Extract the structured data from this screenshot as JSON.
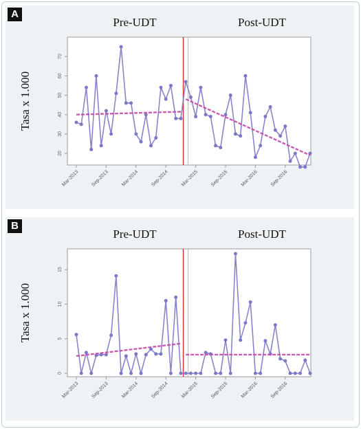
{
  "chart_data": [
    {
      "type": "line",
      "panel": "A",
      "ylabel": "Tasa x 1.000",
      "phase_labels": [
        "Pre-UDT",
        "Post-UDT"
      ],
      "x_ticks": [
        "Mar-2013",
        "Sep-2013",
        "Mar-2014",
        "Sep-2014",
        "Mar-2015",
        "Sep-2015",
        "Mar-2016",
        "Sep-2016"
      ],
      "y_ticks": [
        20,
        30,
        40,
        50,
        60,
        70
      ],
      "ylim": [
        14,
        80
      ],
      "grid": false,
      "series": [
        {
          "values": [
            36,
            35,
            54,
            22,
            60,
            24,
            42,
            30,
            51,
            75,
            46,
            46,
            30,
            26,
            40,
            24,
            28,
            54,
            48,
            55,
            38,
            38,
            57,
            49,
            39,
            54,
            40,
            39,
            24,
            23,
            40,
            50,
            30,
            29,
            60,
            41,
            18,
            24,
            39,
            44,
            32,
            29,
            34,
            16,
            20,
            13,
            13,
            20
          ],
          "color": "#7b78c8"
        }
      ],
      "trend_pre": [
        [
          0,
          40
        ],
        [
          21,
          41.5
        ]
      ],
      "trend_post": [
        [
          22,
          48
        ],
        [
          47,
          19
        ]
      ],
      "intervention_index": 21.5,
      "intervention_color": "#d22f2f",
      "trend_color": "#c74aa8"
    },
    {
      "type": "line",
      "panel": "B",
      "ylabel": "Tasa x 1.000",
      "phase_labels": [
        "Pre-UDT",
        "Post-UDT"
      ],
      "x_ticks": [
        "Mar-2013",
        "Sep-2013",
        "Mar-2014",
        "Sep-2014",
        "Mar-2015",
        "Sep-2015",
        "Mar-2016",
        "Sep-2016"
      ],
      "y_ticks": [
        0,
        5,
        10,
        15
      ],
      "ylim": [
        -0.5,
        18
      ],
      "grid": false,
      "series": [
        {
          "values": [
            5.6,
            0,
            3,
            0,
            2.6,
            2.7,
            2.7,
            5.5,
            14.1,
            0,
            2.5,
            0,
            2.8,
            0,
            2.7,
            3.5,
            2.8,
            2.8,
            10.5,
            0,
            11,
            0,
            0,
            0,
            0,
            0,
            3,
            2.8,
            0,
            0,
            4.8,
            0,
            17.3,
            4.8,
            7.3,
            10.3,
            0,
            0,
            4.7,
            2.8,
            7,
            2.1,
            1.8,
            0,
            0,
            0,
            1.9,
            0
          ],
          "color": "#7b78c8"
        }
      ],
      "trend_pre": [
        [
          0,
          2.5
        ],
        [
          21,
          4.3
        ]
      ],
      "trend_post": [
        [
          22,
          2.7
        ],
        [
          47,
          2.7
        ]
      ],
      "intervention_index": 21.5,
      "intervention_color": "#d22f2f",
      "trend_color": "#c74aa8"
    }
  ],
  "colors": {
    "series": "#7b78c8",
    "trend": "#c74aa8",
    "intervention": "#d22f2f",
    "panel_bg": "#eef2f4",
    "frame": "#b9d3df"
  }
}
